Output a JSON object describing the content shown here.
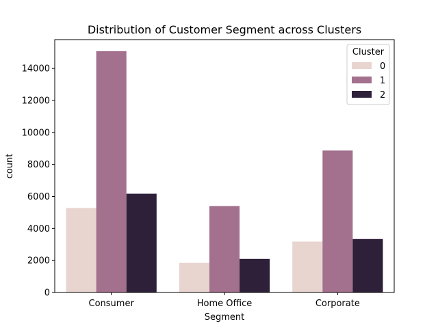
{
  "chart_data": {
    "type": "bar",
    "title": "Distribution of Customer Segment across Clusters",
    "xlabel": "Segment",
    "ylabel": "count",
    "categories": [
      "Consumer",
      "Home Office",
      "Corporate"
    ],
    "series": [
      {
        "name": "0",
        "color": "#e8d5d0",
        "values": [
          5280,
          1850,
          3180
        ]
      },
      {
        "name": "1",
        "color": "#a3708e",
        "values": [
          15080,
          5400,
          8870
        ]
      },
      {
        "name": "2",
        "color": "#2e2039",
        "values": [
          6170,
          2100,
          3340
        ]
      }
    ],
    "ylim": [
      0,
      15800
    ],
    "yticks": [
      0,
      2000,
      4000,
      6000,
      8000,
      10000,
      12000,
      14000
    ],
    "ytick_labels": [
      "0",
      "2000",
      "4000",
      "6000",
      "8000",
      "10000",
      "12000",
      "14000"
    ],
    "legend": {
      "title": "Cluster",
      "placement": "top-right"
    },
    "grid": false
  }
}
